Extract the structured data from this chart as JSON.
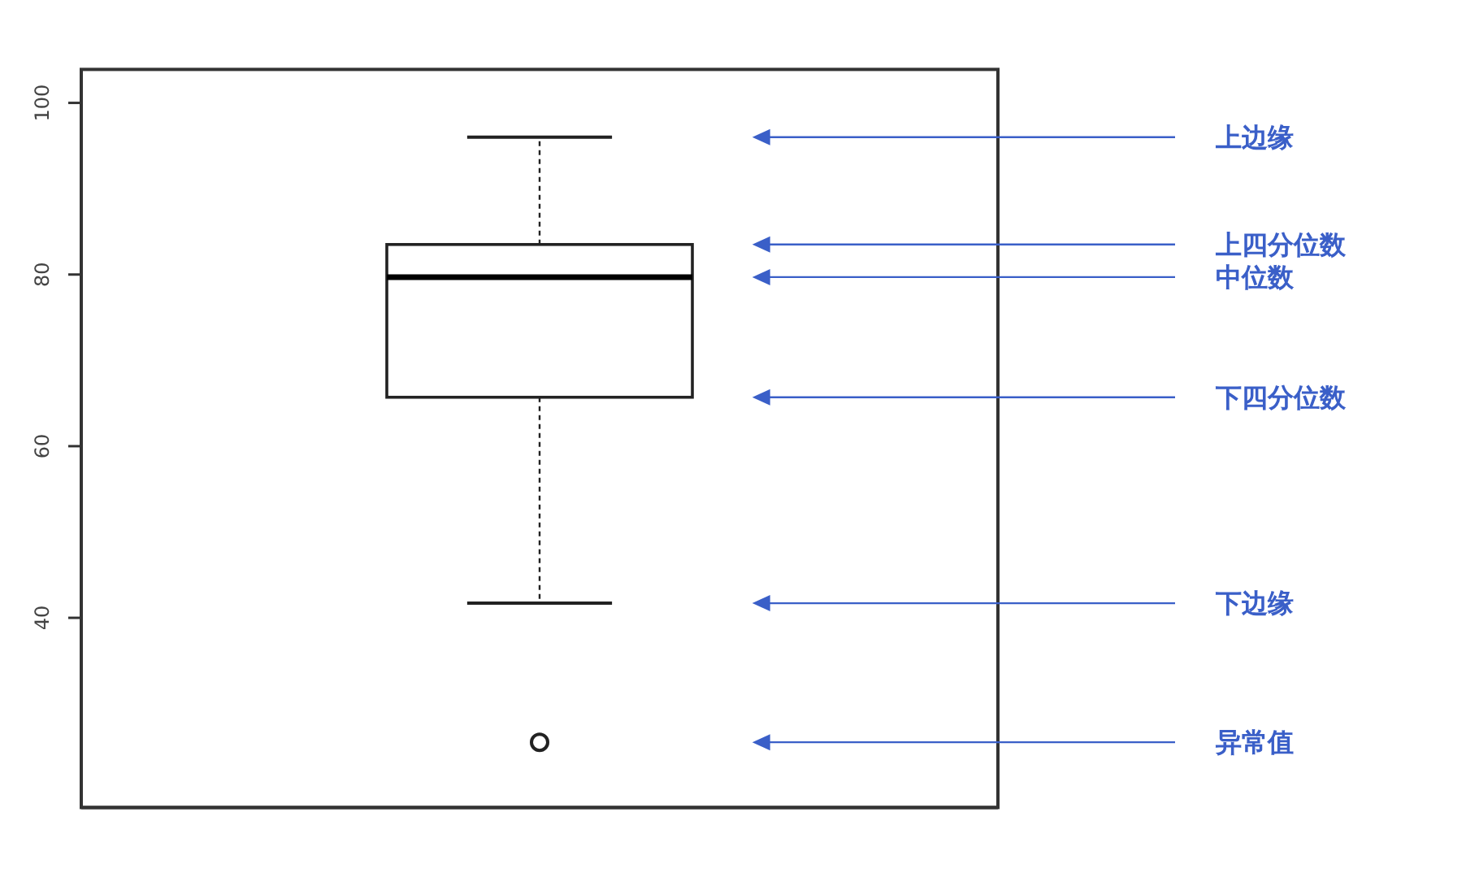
{
  "chart_data": {
    "type": "box",
    "categories": [
      null
    ],
    "boxes": [
      {
        "low": 41.7,
        "q1": 65.7,
        "median": 79.7,
        "q3": 83.5,
        "high": 96.0,
        "outliers": [
          25.5
        ]
      }
    ],
    "ylim": [
      17.9,
      103.9
    ],
    "yticks": [
      40,
      60,
      80,
      100
    ],
    "tick_labels": "y",
    "annotations": [
      "上边缘",
      "上四分位数",
      "中位数",
      "下四分位数",
      "下边缘",
      "异常值"
    ]
  }
}
